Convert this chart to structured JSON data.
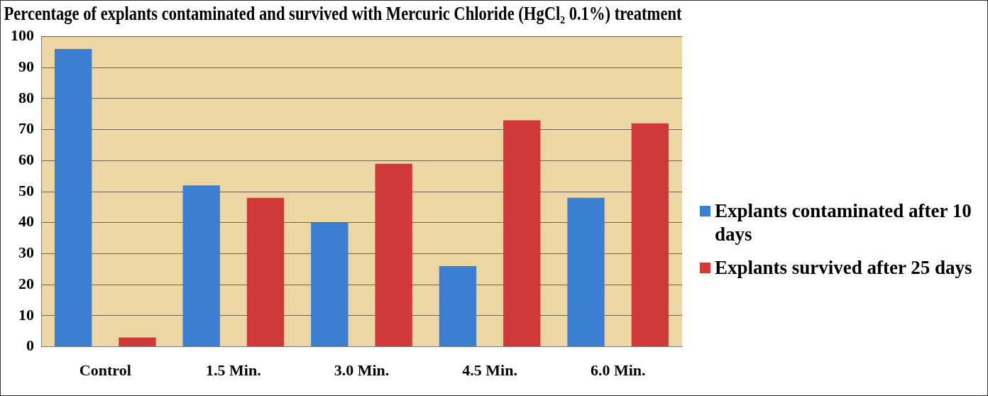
{
  "chart_data": {
    "type": "bar",
    "title": "Percentage of explants contaminated and survived with Mercuric Chloride (HgCl₂ 0.1%) treatment",
    "categories": [
      "Control",
      "1.5 Min.",
      "3.0 Min.",
      "4.5 Min.",
      "6.0 Min."
    ],
    "series": [
      {
        "name": "Explants contaminated after 10 days",
        "color": "#3a7fd0",
        "values": [
          96,
          52,
          40,
          26,
          48
        ]
      },
      {
        "name": "Explants survived after 25 days",
        "color": "#d23a3a",
        "values": [
          3,
          48,
          59,
          73,
          72
        ]
      }
    ],
    "ylim": [
      0,
      100
    ],
    "yticks": [
      0,
      10,
      20,
      30,
      40,
      50,
      60,
      70,
      80,
      90,
      100
    ],
    "grid": "y",
    "legend": "right"
  }
}
